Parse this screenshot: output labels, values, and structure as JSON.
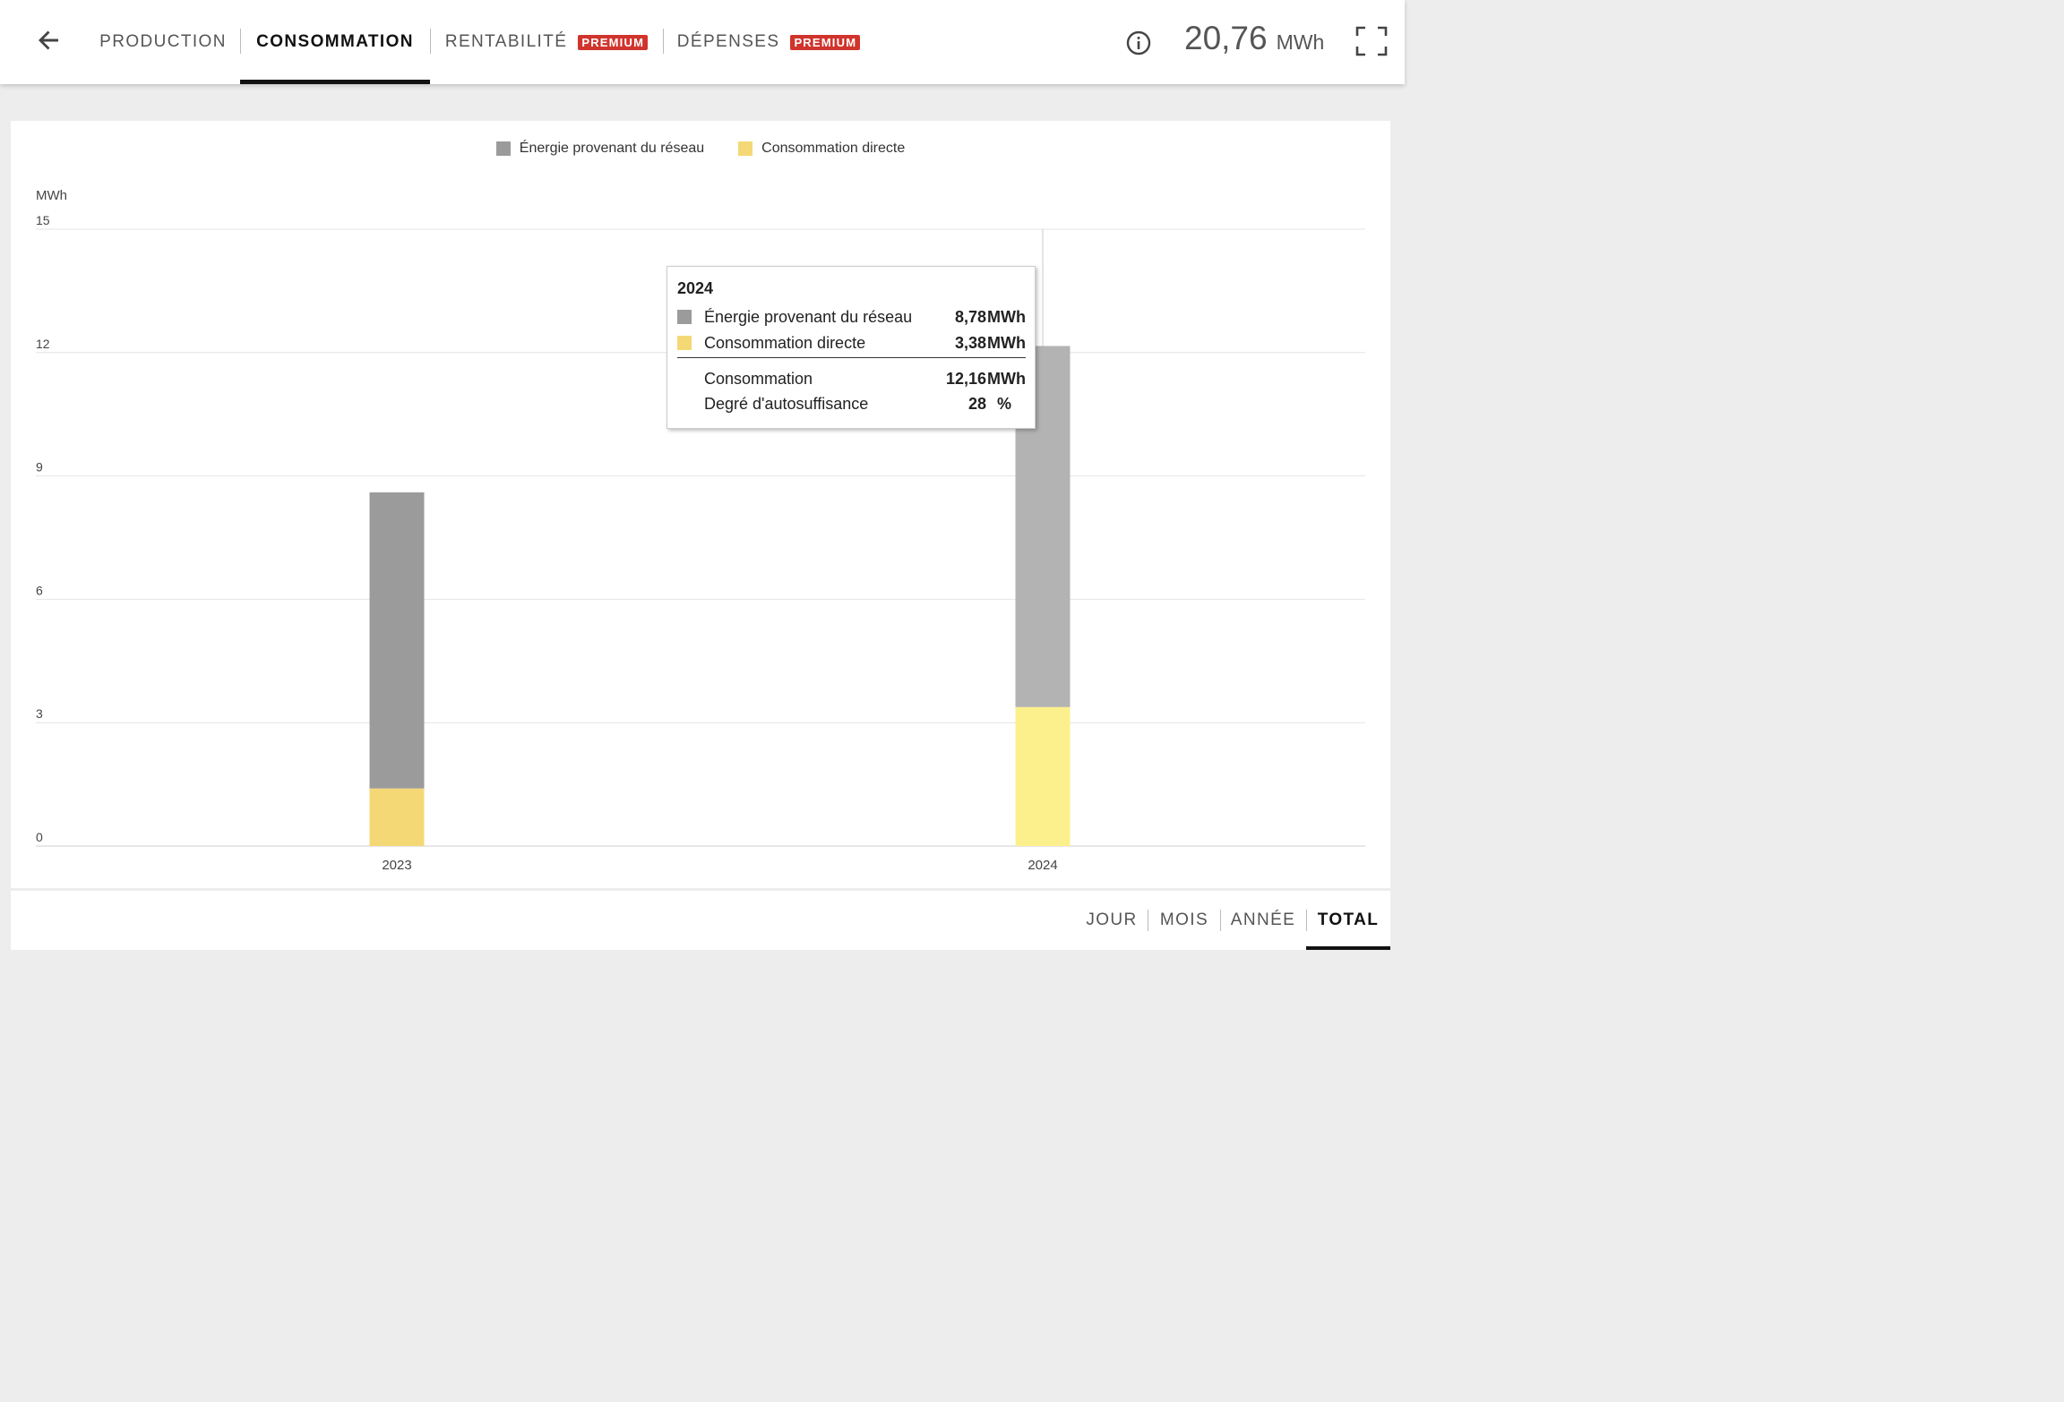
{
  "header": {
    "tabs": [
      {
        "label": "PRODUCTION",
        "active": false,
        "badge": ""
      },
      {
        "label": "CONSOMMATION",
        "active": true,
        "badge": ""
      },
      {
        "label": "RENTABILITÉ",
        "active": false,
        "badge": "PREMIUM"
      },
      {
        "label": "DÉPENSES",
        "active": false,
        "badge": "PREMIUM"
      }
    ],
    "total_value": "20,76",
    "total_unit": "MWh"
  },
  "chart_data": {
    "type": "bar",
    "stacked": true,
    "ylabel": "MWh",
    "ylim": [
      0,
      15
    ],
    "yticks": [
      "0",
      "3",
      "6",
      "9",
      "12",
      "15"
    ],
    "categories": [
      "2023",
      "2024"
    ],
    "series": [
      {
        "name": "Consommation directe",
        "values": [
          1.4,
          3.38
        ],
        "colors": [
          "#f5d876",
          "#fcf08c"
        ]
      },
      {
        "name": "Énergie provenant du réseau",
        "values": [
          7.2,
          8.78
        ],
        "colors": [
          "#9b9b9b",
          "#b3b3b3"
        ]
      }
    ],
    "legend": [
      {
        "label": "Énergie provenant du réseau",
        "color": "#9b9b9b"
      },
      {
        "label": "Consommation directe",
        "color": "#f5d876"
      }
    ],
    "grid": true,
    "legend_position": "top-center"
  },
  "tooltip": {
    "title": "2024",
    "rows": [
      {
        "label": "Énergie provenant du réseau",
        "value": "8,78",
        "unit": "MWh",
        "color": "#9b9b9b"
      },
      {
        "label": "Consommation directe",
        "value": "3,38",
        "unit": "MWh",
        "color": "#f5d876"
      }
    ],
    "totals": [
      {
        "label": "Consommation",
        "value": "12,16",
        "unit": "MWh"
      },
      {
        "label": "Degré d'autosuffisance",
        "value": "28",
        "unit": "%"
      }
    ]
  },
  "period_tabs": [
    {
      "label": "JOUR",
      "active": false
    },
    {
      "label": "MOIS",
      "active": false
    },
    {
      "label": "ANNÉE",
      "active": false
    },
    {
      "label": "TOTAL",
      "active": true
    }
  ]
}
